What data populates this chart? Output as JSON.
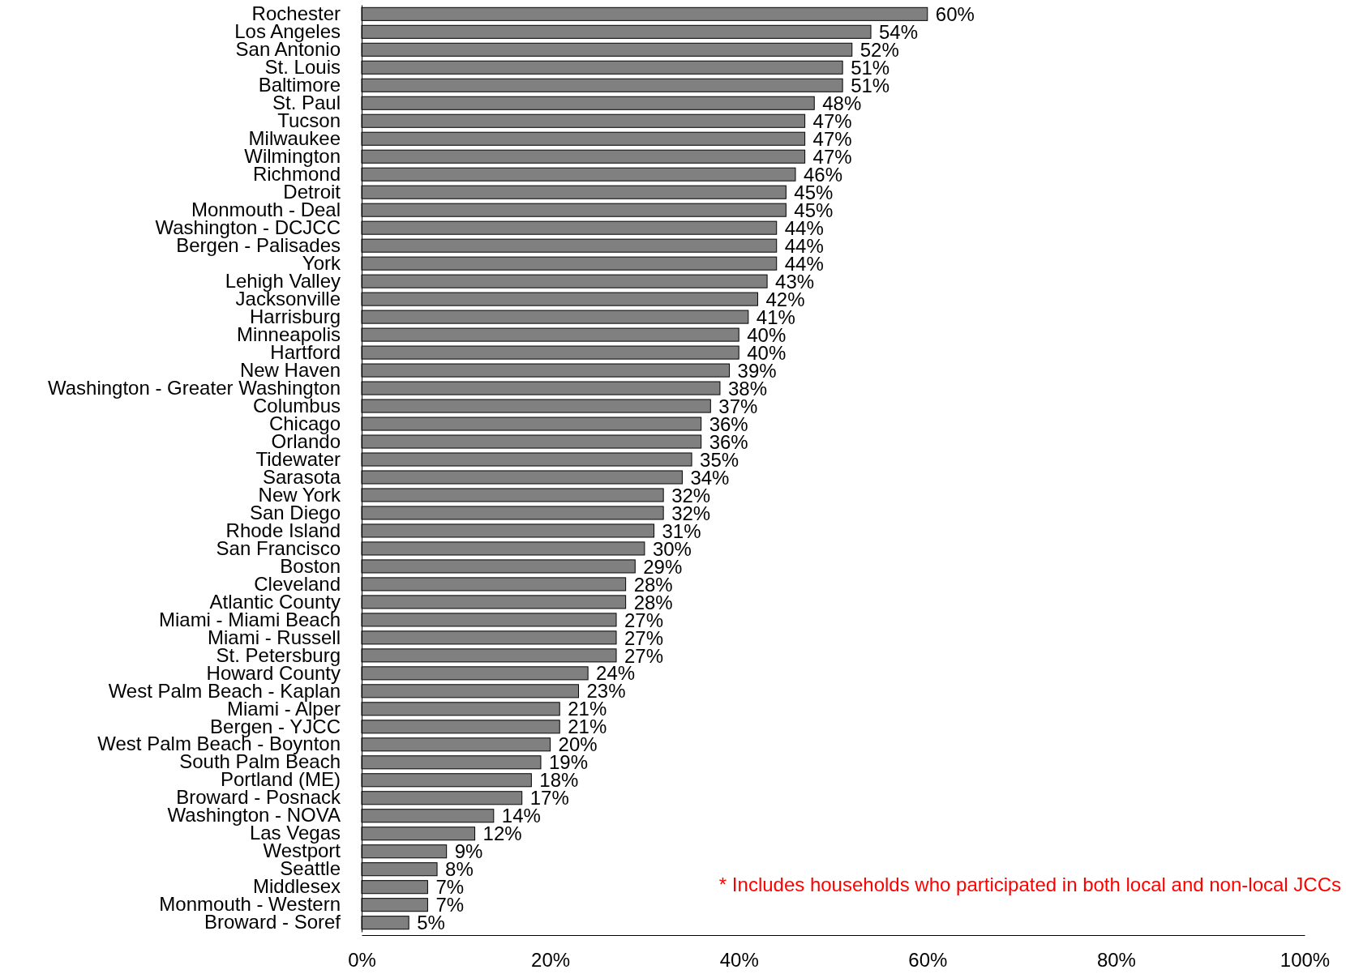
{
  "chart_data": {
    "type": "bar",
    "orientation": "horizontal",
    "categories": [
      "Rochester",
      "Los Angeles",
      "San Antonio",
      "St. Louis",
      "Baltimore",
      "St. Paul",
      "Tucson",
      "Milwaukee",
      "Wilmington",
      "Richmond",
      "Detroit",
      "Monmouth - Deal",
      "Washington - DCJCC",
      "Bergen - Palisades",
      "York",
      "Lehigh Valley",
      "Jacksonville",
      "Harrisburg",
      "Minneapolis",
      "Hartford",
      "New Haven",
      "Washington - Greater Washington",
      "Columbus",
      "Chicago",
      "Orlando",
      "Tidewater",
      "Sarasota",
      "New York",
      "San Diego",
      "Rhode Island",
      "San Francisco",
      "Boston",
      "Cleveland",
      "Atlantic County",
      "Miami - Miami Beach",
      "Miami - Russell",
      "St. Petersburg",
      "Howard County",
      "West Palm Beach - Kaplan",
      "Miami - Alper",
      "Bergen - YJCC",
      "West Palm Beach - Boynton",
      "South Palm Beach",
      "Portland (ME)",
      "Broward - Posnack",
      "Washington - NOVA",
      "Las Vegas",
      "Westport",
      "Seattle",
      "Middlesex",
      "Monmouth - Western",
      "Broward - Soref"
    ],
    "values": [
      60,
      54,
      52,
      51,
      51,
      48,
      47,
      47,
      47,
      46,
      45,
      45,
      44,
      44,
      44,
      43,
      42,
      41,
      40,
      40,
      39,
      38,
      37,
      36,
      36,
      35,
      34,
      32,
      32,
      31,
      30,
      29,
      28,
      28,
      27,
      27,
      27,
      24,
      23,
      21,
      21,
      20,
      19,
      18,
      17,
      14,
      12,
      9,
      8,
      7,
      7,
      5
    ],
    "value_labels": [
      "60%",
      "54%",
      "52%",
      "51%",
      "51%",
      "48%",
      "47%",
      "47%",
      "47%",
      "46%",
      "45%",
      "45%",
      "44%",
      "44%",
      "44%",
      "43%",
      "42%",
      "41%",
      "40%",
      "40%",
      "39%",
      "38%",
      "37%",
      "36%",
      "36%",
      "35%",
      "34%",
      "32%",
      "32%",
      "31%",
      "30%",
      "29%",
      "28%",
      "28%",
      "27%",
      "27%",
      "27%",
      "24%",
      "23%",
      "21%",
      "21%",
      "20%",
      "19%",
      "18%",
      "17%",
      "14%",
      "12%",
      "9%",
      "8%",
      "7%",
      "7%",
      "5%"
    ],
    "color": "#808080",
    "xlim": [
      0,
      100
    ],
    "xticks": [
      {
        "value": 0,
        "label": "0%"
      },
      {
        "value": 20,
        "label": "20%"
      },
      {
        "value": 40,
        "label": "40%"
      },
      {
        "value": 60,
        "label": "60%"
      },
      {
        "value": 80,
        "label": "80%"
      },
      {
        "value": 100,
        "label": "100%"
      }
    ],
    "annotations": [
      "* Includes households who participated in both local and non-local JCCs"
    ]
  }
}
